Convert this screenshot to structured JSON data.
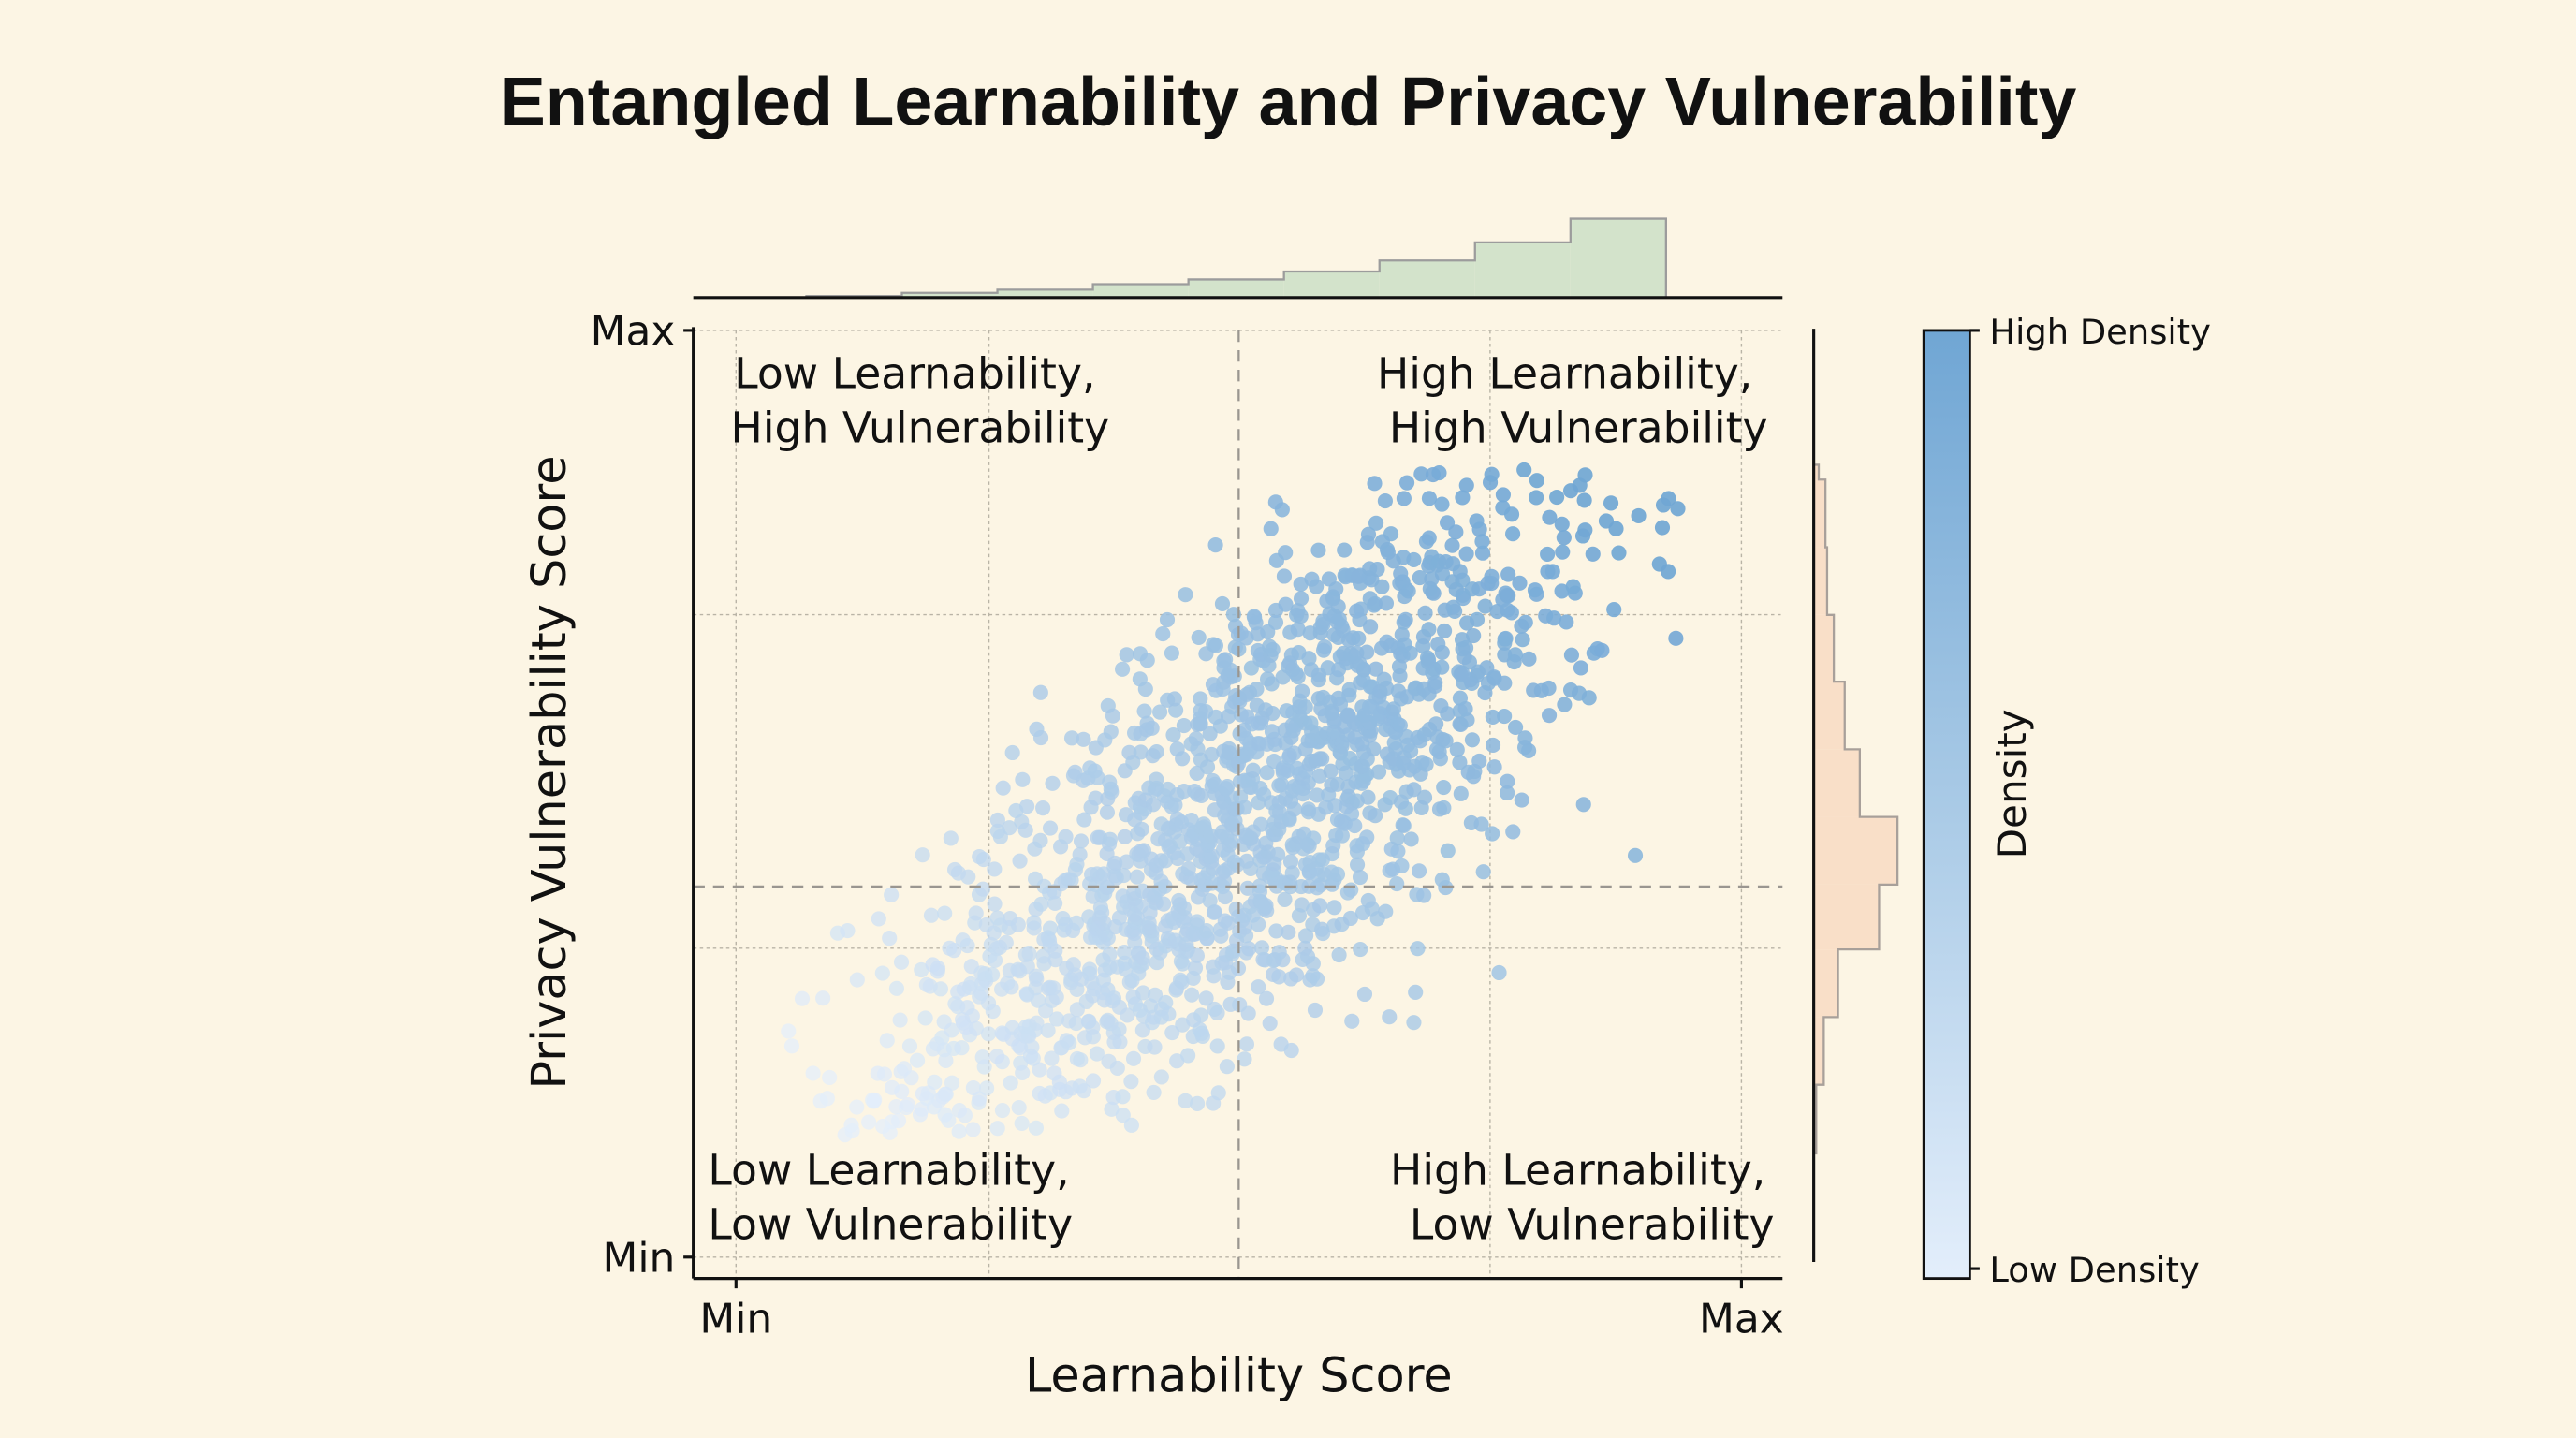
{
  "chart_data": {
    "type": "scatter",
    "title": "Entangled Learnability and Privacy Vulnerability",
    "xlabel": "Learnability Score",
    "ylabel": "Privacy Vulnerability Score",
    "x_ticks": [
      "Min",
      "Max"
    ],
    "y_ticks": [
      "Max",
      "Min"
    ],
    "xlim": [
      0,
      1
    ],
    "ylim": [
      0,
      1
    ],
    "grid": true,
    "quadrant_split": {
      "x": 0.5,
      "y": 0.4
    },
    "quadrant_labels": {
      "top_left": [
        "Low Learnability,",
        "High Vulnerability"
      ],
      "top_right": [
        "High Learnability,",
        "High Vulnerability"
      ],
      "bottom_left": [
        "Low Learnability,",
        "Low Vulnerability"
      ],
      "bottom_right": [
        "High Learnability,",
        "Low Vulnerability"
      ]
    },
    "scatter": {
      "n_points": 1500,
      "distribution": "bivariate, positively correlated",
      "x_mean": 0.5,
      "y_mean": 0.47,
      "x_sd": 0.19,
      "y_sd": 0.2,
      "correlation": 0.78,
      "x_range": [
        0.05,
        0.95
      ],
      "y_range": [
        0.13,
        0.85
      ],
      "color_encoding": "density (lower-left light, upper-right dark)"
    },
    "marginal_top": {
      "type": "histogram",
      "variable": "Learnability Score",
      "bin_edges": [
        0.07,
        0.165,
        0.26,
        0.355,
        0.45,
        0.545,
        0.64,
        0.735,
        0.83,
        0.925
      ],
      "relative_counts": [
        0.02,
        0.06,
        0.1,
        0.17,
        0.23,
        0.33,
        0.47,
        0.7,
        1.0
      ],
      "color": "#d3e3cb"
    },
    "marginal_right": {
      "type": "histogram",
      "variable": "Privacy Vulnerability Score",
      "bin_edges": [
        0.855,
        0.839,
        0.766,
        0.693,
        0.621,
        0.548,
        0.475,
        0.402,
        0.332,
        0.259,
        0.186,
        0.112
      ],
      "relative_counts": [
        0.06,
        0.14,
        0.16,
        0.24,
        0.37,
        0.55,
        1.0,
        0.78,
        0.29,
        0.12,
        0.03
      ],
      "color": "#f9dfc8"
    },
    "colorbar": {
      "title": "Density",
      "high_label": "High Density",
      "low_label": "Low Density",
      "high_color": "#70a6d4",
      "low_color": "#e3eefb"
    }
  }
}
